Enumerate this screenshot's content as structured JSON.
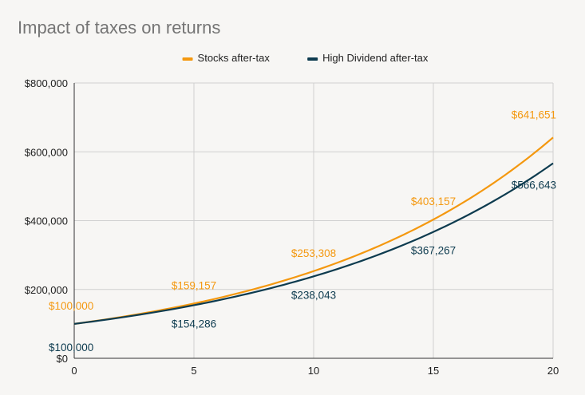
{
  "chart_data": {
    "type": "line",
    "title": "Impact of taxes on returns",
    "xlabel": "",
    "ylabel": "",
    "x_ticks": [
      0,
      5,
      10,
      15,
      20
    ],
    "y_ticks": [
      0,
      200000,
      400000,
      600000,
      800000
    ],
    "y_tick_labels": [
      "$0",
      "$200,000",
      "$400,000",
      "$600,000",
      "$800,000"
    ],
    "xlim": [
      0,
      20
    ],
    "ylim": [
      0,
      800000
    ],
    "grid": true,
    "legend_position": "top-center",
    "series": [
      {
        "name": "Stocks after-tax",
        "color": "#f4980f",
        "x": [
          0,
          5,
          10,
          15,
          20
        ],
        "values": [
          100000,
          159157,
          253308,
          403157,
          641651
        ],
        "labels": [
          "$100,000",
          "$159,157",
          "$253,308",
          "$403,157",
          "$641,651"
        ]
      },
      {
        "name": "High Dividend after-tax",
        "color": "#0d3b4f",
        "x": [
          0,
          5,
          10,
          15,
          20
        ],
        "values": [
          100000,
          154286,
          238043,
          367267,
          566643
        ],
        "labels": [
          "$100,000",
          "$154,286",
          "$238,043",
          "$367,267",
          "$566,643"
        ]
      }
    ]
  }
}
